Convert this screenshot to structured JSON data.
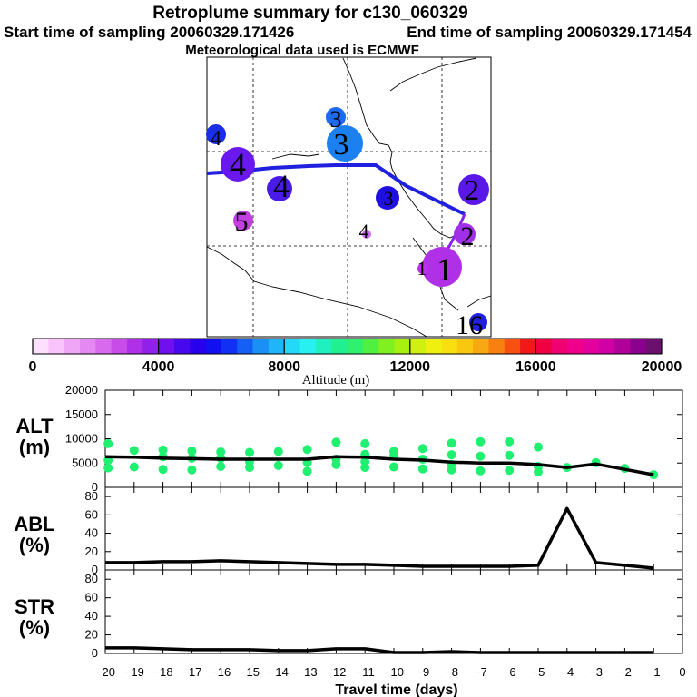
{
  "title": {
    "line1": "Retroplume summary for c130_060329",
    "line2a": "Start time of sampling 20060329.171426",
    "line2b": "End time of sampling 20060329.171454",
    "line3": "Meteorological data used is ECMWF"
  },
  "chart_data": [
    {
      "type": "map",
      "name": "retroplume-map",
      "track": {
        "description": "plume centroid track",
        "color": "#2020e0",
        "points": [
          {
            "lon_index": 0.0,
            "lat_index": 0.6
          },
          {
            "lon_index": 0.57,
            "lat_index": 0.62
          },
          {
            "lon_index": 0.91,
            "lat_index": 0.48
          }
        ]
      },
      "clusters": [
        {
          "label": "4",
          "altitude": 4500,
          "color": "#1a2ee8"
        },
        {
          "label": "4",
          "altitude": 5200,
          "color": "#6a18f0"
        },
        {
          "label": "4",
          "altitude": 4700,
          "color": "#4a1ae8"
        },
        {
          "label": "3",
          "altitude": 6400,
          "color": "#1d80f0"
        },
        {
          "label": "3",
          "altitude": 6100,
          "color": "#1e6af0"
        },
        {
          "label": "3",
          "altitude": 3800,
          "color": "#2010e0"
        },
        {
          "label": "5",
          "altitude": 1400,
          "color": "#c040e0"
        },
        {
          "label": "4",
          "altitude": 900,
          "color": "#d070f0"
        },
        {
          "label": "2",
          "altitude": 3100,
          "color": "#5a18e8"
        },
        {
          "label": "2",
          "altitude": 2000,
          "color": "#a030e8"
        },
        {
          "label": "1",
          "altitude": 1800,
          "color": "#b030e8"
        },
        {
          "label": "1",
          "altitude": 1600,
          "color": "#c030f0"
        },
        {
          "label": "16",
          "altitude": 3900,
          "color": "#2020e0"
        }
      ]
    },
    {
      "type": "colorbar",
      "name": "altitude-colorbar",
      "xlabel": "Altitude (m)",
      "range": [
        0,
        20000
      ],
      "ticks": [
        "0",
        "4000",
        "8000",
        "12000",
        "16000",
        "20000"
      ],
      "tick_values": [
        0,
        4000,
        8000,
        12000,
        16000,
        20000
      ],
      "colors": [
        "#fde0fe",
        "#f8c4fb",
        "#f0a6f6",
        "#e488f2",
        "#d86aee",
        "#c84ce8",
        "#b030e8",
        "#9020ea",
        "#7010ee",
        "#4808ee",
        "#2800ee",
        "#1010f0",
        "#1030f4",
        "#1460f4",
        "#1a90f6",
        "#20b4f8",
        "#24d8f8",
        "#28f0f0",
        "#20f0c0",
        "#20f090",
        "#30f070",
        "#50f040",
        "#80f020",
        "#a8f010",
        "#d0f010",
        "#f0f010",
        "#f8e010",
        "#f8c810",
        "#f8a810",
        "#f88010",
        "#f85010",
        "#f01818",
        "#f00040",
        "#f00070",
        "#f0008a",
        "#e4009c",
        "#d000a4",
        "#b0009a",
        "#8c0090",
        "#6c1070"
      ]
    },
    {
      "type": "line+scatter",
      "name": "alt-panel",
      "ylabel_line1": "ALT",
      "ylabel_line2": "(m)",
      "ylim": [
        0,
        20000
      ],
      "yticks": [
        "0",
        "5000",
        "10000",
        "15000",
        "20000"
      ],
      "ytick_values": [
        0,
        5000,
        10000,
        15000,
        20000
      ],
      "xlim": [
        -20,
        0
      ],
      "line": {
        "x": [
          -20,
          -19,
          -18,
          -17,
          -16,
          -15,
          -14,
          -13,
          -12,
          -11,
          -10,
          -9,
          -8,
          -7,
          -6,
          -5,
          -4,
          -3,
          -2,
          -1
        ],
        "y": [
          6300,
          6200,
          6000,
          5900,
          5800,
          5800,
          5800,
          5800,
          6300,
          6200,
          5800,
          5600,
          5200,
          5000,
          5000,
          4700,
          4100,
          4800,
          3700,
          2600
        ]
      },
      "scatter": {
        "color": "#20f070",
        "points": [
          {
            "x": -19.9,
            "y": 9000
          },
          {
            "x": -19.9,
            "y": 5600
          },
          {
            "x": -19.9,
            "y": 4000
          },
          {
            "x": -19.0,
            "y": 7600
          },
          {
            "x": -19.0,
            "y": 4200
          },
          {
            "x": -18.0,
            "y": 7700
          },
          {
            "x": -18.0,
            "y": 6300
          },
          {
            "x": -18.0,
            "y": 3700
          },
          {
            "x": -17.0,
            "y": 7500
          },
          {
            "x": -17.0,
            "y": 6000
          },
          {
            "x": -17.0,
            "y": 3600
          },
          {
            "x": -16.0,
            "y": 7300
          },
          {
            "x": -16.0,
            "y": 6000
          },
          {
            "x": -16.0,
            "y": 4300
          },
          {
            "x": -15.0,
            "y": 7200
          },
          {
            "x": -15.0,
            "y": 5300
          },
          {
            "x": -15.0,
            "y": 4100
          },
          {
            "x": -14.0,
            "y": 7400
          },
          {
            "x": -14.0,
            "y": 4500
          },
          {
            "x": -13.0,
            "y": 7800
          },
          {
            "x": -13.0,
            "y": 5100
          },
          {
            "x": -13.0,
            "y": 3300
          },
          {
            "x": -12.0,
            "y": 9300
          },
          {
            "x": -12.0,
            "y": 5800
          },
          {
            "x": -12.0,
            "y": 4700
          },
          {
            "x": -11.0,
            "y": 9000
          },
          {
            "x": -11.0,
            "y": 6800
          },
          {
            "x": -11.0,
            "y": 5300
          },
          {
            "x": -11.0,
            "y": 4100
          },
          {
            "x": -10.0,
            "y": 7400
          },
          {
            "x": -10.0,
            "y": 6500
          },
          {
            "x": -10.0,
            "y": 4200
          },
          {
            "x": -9.0,
            "y": 8000
          },
          {
            "x": -9.0,
            "y": 5800
          },
          {
            "x": -9.0,
            "y": 3800
          },
          {
            "x": -8.0,
            "y": 9100
          },
          {
            "x": -8.0,
            "y": 6700
          },
          {
            "x": -8.0,
            "y": 4700
          },
          {
            "x": -8.0,
            "y": 3600
          },
          {
            "x": -7.0,
            "y": 9400
          },
          {
            "x": -7.0,
            "y": 6400
          },
          {
            "x": -7.0,
            "y": 3400
          },
          {
            "x": -6.0,
            "y": 9400
          },
          {
            "x": -6.0,
            "y": 6600
          },
          {
            "x": -6.0,
            "y": 3500
          },
          {
            "x": -5.0,
            "y": 8300
          },
          {
            "x": -5.0,
            "y": 4300
          },
          {
            "x": -5.0,
            "y": 3200
          },
          {
            "x": -4.0,
            "y": 4100
          },
          {
            "x": -3.0,
            "y": 5100
          },
          {
            "x": -2.0,
            "y": 3900
          },
          {
            "x": -1.0,
            "y": 2600
          }
        ]
      }
    },
    {
      "type": "line",
      "name": "abl-panel",
      "ylabel_line1": "ABL",
      "ylabel_line2": "(%)",
      "ylim": [
        0,
        90
      ],
      "yticks": [
        "0",
        "20",
        "40",
        "60",
        "80"
      ],
      "ytick_values": [
        0,
        20,
        40,
        60,
        80
      ],
      "xlim": [
        -20,
        0
      ],
      "x": [
        -20,
        -19,
        -18,
        -17,
        -16,
        -15,
        -14,
        -13,
        -12,
        -11,
        -10,
        -9,
        -8,
        -7,
        -6,
        -5,
        -4,
        -3,
        -2,
        -1
      ],
      "y": [
        8,
        8,
        9,
        9,
        10,
        9,
        8,
        7,
        6,
        6,
        5,
        4,
        4,
        4,
        4,
        5,
        67,
        8,
        5,
        2
      ]
    },
    {
      "type": "line",
      "name": "str-panel",
      "ylabel_line1": "STR",
      "ylabel_line2": "(%)",
      "ylim": [
        0,
        90
      ],
      "yticks": [
        "0",
        "20",
        "40",
        "60",
        "80"
      ],
      "ytick_values": [
        0,
        20,
        40,
        60,
        80
      ],
      "xlim": [
        -20,
        0
      ],
      "xlabel": "Travel time (days)",
      "xticks": [
        "−20",
        "−19",
        "−18",
        "−17",
        "−16",
        "−15",
        "−14",
        "−13",
        "−12",
        "−11",
        "−10",
        "−9",
        "−8",
        "−7",
        "−6",
        "−5",
        "−4",
        "−3",
        "−2",
        "−1",
        "0"
      ],
      "xtick_values": [
        -20,
        -19,
        -18,
        -17,
        -16,
        -15,
        -14,
        -13,
        -12,
        -11,
        -10,
        -9,
        -8,
        -7,
        -6,
        -5,
        -4,
        -3,
        -2,
        -1,
        0
      ],
      "x": [
        -20,
        -19,
        -18,
        -17,
        -16,
        -15,
        -14,
        -13,
        -12,
        -11,
        -10,
        -9,
        -8,
        -7,
        -6,
        -5,
        -4,
        -3,
        -2,
        -1
      ],
      "y": [
        6,
        6,
        5,
        4,
        4,
        4,
        3,
        3,
        5,
        5,
        1,
        1,
        2,
        1,
        1,
        1,
        1,
        1,
        1,
        1
      ]
    }
  ]
}
